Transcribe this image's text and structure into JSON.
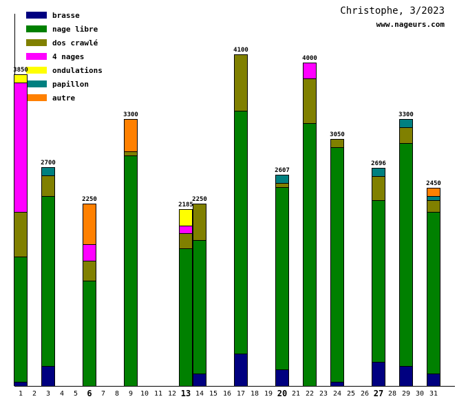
{
  "chart_data": {
    "type": "bar",
    "stacked": true,
    "title": "Christophe, 3/2023",
    "subtitle": "www.nageurs.com",
    "xlabel": "",
    "ylabel": "",
    "ylim": [
      0,
      4600
    ],
    "grid": false,
    "legend_position": "top-left",
    "categories": [
      1,
      2,
      3,
      4,
      5,
      6,
      7,
      8,
      9,
      10,
      11,
      12,
      13,
      14,
      15,
      16,
      17,
      18,
      19,
      20,
      21,
      22,
      23,
      24,
      25,
      26,
      27,
      28,
      29,
      30,
      31
    ],
    "bold_categories": [
      6,
      13,
      20,
      27
    ],
    "legend": [
      {
        "label": "brasse",
        "color": "#000080"
      },
      {
        "label": "nage libre",
        "color": "#008000"
      },
      {
        "label": "dos crawlé",
        "color": "#808000"
      },
      {
        "label": "4 nages",
        "color": "#ff00ff"
      },
      {
        "label": "ondulations",
        "color": "#ffff00"
      },
      {
        "label": "papillon",
        "color": "#008080"
      },
      {
        "label": "autre",
        "color": "#ff8000"
      }
    ],
    "bars": [
      {
        "day": 1,
        "total": 3850,
        "segments": [
          {
            "series": "brasse",
            "value": 50
          },
          {
            "series": "nage libre",
            "value": 1550
          },
          {
            "series": "dos crawlé",
            "value": 550
          },
          {
            "series": "4 nages",
            "value": 1600
          },
          {
            "series": "ondulations",
            "value": 100
          }
        ]
      },
      {
        "day": 3,
        "total": 2700,
        "segments": [
          {
            "series": "brasse",
            "value": 250
          },
          {
            "series": "nage libre",
            "value": 2100
          },
          {
            "series": "dos crawlé",
            "value": 250
          },
          {
            "series": "papillon",
            "value": 100
          }
        ]
      },
      {
        "day": 6,
        "total": 2250,
        "segments": [
          {
            "series": "nage libre",
            "value": 1300
          },
          {
            "series": "dos crawlé",
            "value": 250
          },
          {
            "series": "4 nages",
            "value": 200
          },
          {
            "series": "autre",
            "value": 500
          }
        ]
      },
      {
        "day": 9,
        "total": 3300,
        "segments": [
          {
            "series": "nage libre",
            "value": 2850
          },
          {
            "series": "dos crawlé",
            "value": 50
          },
          {
            "series": "autre",
            "value": 400
          }
        ]
      },
      {
        "day": 13,
        "total": 2185,
        "segments": [
          {
            "series": "nage libre",
            "value": 1700
          },
          {
            "series": "dos crawlé",
            "value": 185
          },
          {
            "series": "4 nages",
            "value": 100
          },
          {
            "series": "ondulations",
            "value": 200
          }
        ]
      },
      {
        "day": 14,
        "total": 2250,
        "segments": [
          {
            "series": "brasse",
            "value": 150
          },
          {
            "series": "nage libre",
            "value": 1650
          },
          {
            "series": "dos crawlé",
            "value": 450
          }
        ]
      },
      {
        "day": 17,
        "total": 4100,
        "segments": [
          {
            "series": "brasse",
            "value": 400
          },
          {
            "series": "nage libre",
            "value": 3000
          },
          {
            "series": "dos crawlé",
            "value": 700
          }
        ]
      },
      {
        "day": 20,
        "total": 2607,
        "segments": [
          {
            "series": "brasse",
            "value": 200
          },
          {
            "series": "nage libre",
            "value": 2257
          },
          {
            "series": "dos crawlé",
            "value": 50
          },
          {
            "series": "papillon",
            "value": 100
          }
        ]
      },
      {
        "day": 22,
        "total": 4000,
        "segments": [
          {
            "series": "nage libre",
            "value": 3250
          },
          {
            "series": "dos crawlé",
            "value": 550
          },
          {
            "series": "4 nages",
            "value": 200
          }
        ]
      },
      {
        "day": 24,
        "total": 3050,
        "segments": [
          {
            "series": "brasse",
            "value": 50
          },
          {
            "series": "nage libre",
            "value": 2900
          },
          {
            "series": "dos crawlé",
            "value": 100
          }
        ]
      },
      {
        "day": 27,
        "total": 2696,
        "segments": [
          {
            "series": "brasse",
            "value": 300
          },
          {
            "series": "nage libre",
            "value": 1996
          },
          {
            "series": "dos crawlé",
            "value": 300
          },
          {
            "series": "papillon",
            "value": 100
          }
        ]
      },
      {
        "day": 29,
        "total": 3300,
        "segments": [
          {
            "series": "brasse",
            "value": 250
          },
          {
            "series": "nage libre",
            "value": 2750
          },
          {
            "series": "dos crawlé",
            "value": 200
          },
          {
            "series": "papillon",
            "value": 100
          }
        ]
      },
      {
        "day": 31,
        "total": 2450,
        "segments": [
          {
            "series": "brasse",
            "value": 150
          },
          {
            "series": "nage libre",
            "value": 2000
          },
          {
            "series": "dos crawlé",
            "value": 150
          },
          {
            "series": "papillon",
            "value": 50
          },
          {
            "series": "autre",
            "value": 100
          }
        ]
      }
    ]
  }
}
